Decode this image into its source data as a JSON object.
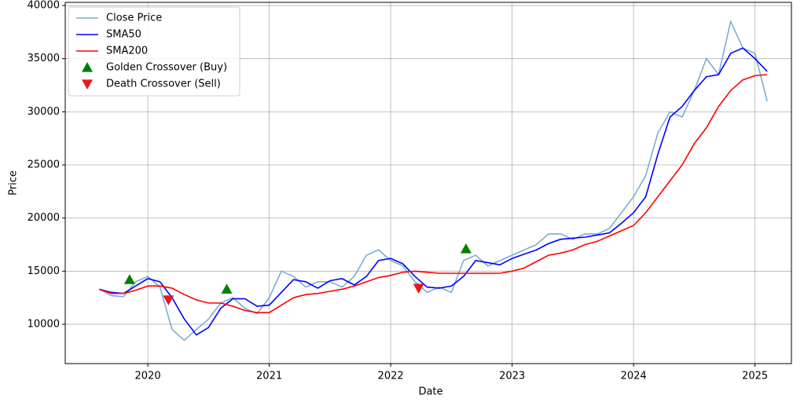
{
  "chart_data": {
    "type": "line",
    "xlabel": "Date",
    "ylabel": "Price",
    "x": [
      2019.6,
      2019.7,
      2019.8,
      2019.9,
      2020.0,
      2020.1,
      2020.2,
      2020.3,
      2020.4,
      2020.5,
      2020.6,
      2020.7,
      2020.8,
      2020.9,
      2021.0,
      2021.1,
      2021.2,
      2021.3,
      2021.4,
      2021.5,
      2021.6,
      2021.7,
      2021.8,
      2021.9,
      2022.0,
      2022.1,
      2022.2,
      2022.3,
      2022.4,
      2022.5,
      2022.6,
      2022.7,
      2022.8,
      2022.9,
      2023.0,
      2023.1,
      2023.2,
      2023.3,
      2023.4,
      2023.5,
      2023.6,
      2023.7,
      2023.8,
      2023.9,
      2024.0,
      2024.1,
      2024.2,
      2024.3,
      2024.4,
      2024.5,
      2024.6,
      2024.7,
      2024.8,
      2024.9,
      2025.0,
      2025.1
    ],
    "series": [
      {
        "name": "Close Price",
        "color": "#79add2",
        "values": [
          13300,
          12700,
          12600,
          14000,
          14500,
          13500,
          9500,
          8500,
          9500,
          10500,
          12000,
          12500,
          11500,
          11000,
          12500,
          15000,
          14500,
          13500,
          14000,
          14000,
          13500,
          14500,
          16500,
          17000,
          16000,
          15500,
          14000,
          13000,
          13500,
          13000,
          16000,
          16500,
          15500,
          16000,
          16500,
          17000,
          17500,
          18500,
          18500,
          18000,
          18500,
          18500,
          19000,
          20500,
          22000,
          24000,
          28000,
          30000,
          29500,
          32000,
          35000,
          33500,
          38500,
          36000,
          35500,
          31000
        ]
      },
      {
        "name": "SMA50",
        "color": "#0000ff",
        "values": [
          13300,
          13000,
          12900,
          13600,
          14300,
          14000,
          12500,
          10500,
          9000,
          9700,
          11500,
          12400,
          12400,
          11700,
          11800,
          13000,
          14200,
          14000,
          13400,
          14100,
          14300,
          13700,
          14500,
          16000,
          16200,
          15700,
          14500,
          13500,
          13400,
          13600,
          14500,
          16000,
          15800,
          15600,
          16200,
          16600,
          17000,
          17600,
          18000,
          18100,
          18200,
          18400,
          18600,
          19500,
          20500,
          22000,
          26000,
          29500,
          30500,
          32000,
          33300,
          33500,
          35500,
          36000,
          35000,
          33800
        ]
      },
      {
        "name": "SMA200",
        "color": "#ff0000",
        "values": [
          13300,
          12900,
          12900,
          13200,
          13600,
          13600,
          13400,
          12800,
          12300,
          12000,
          12000,
          11700,
          11300,
          11100,
          11100,
          11800,
          12500,
          12800,
          12900,
          13100,
          13300,
          13600,
          14000,
          14400,
          14600,
          14900,
          15000,
          14900,
          14800,
          14800,
          14800,
          14800,
          14800,
          14800,
          15000,
          15300,
          15900,
          16500,
          16700,
          17000,
          17500,
          17800,
          18300,
          18800,
          19300,
          20500,
          22000,
          23500,
          25000,
          27000,
          28500,
          30500,
          32000,
          33000,
          33400,
          33500
        ]
      },
      {
        "name": "Golden Crossover (Buy)",
        "type": "scatter",
        "marker": "up",
        "color": "#008000",
        "x": [
          2019.85,
          2020.65,
          2022.62
        ],
        "values": [
          14200,
          13300,
          17100
        ]
      },
      {
        "name": "Death Crossover (Sell)",
        "type": "scatter",
        "marker": "down",
        "color": "#e8191e",
        "x": [
          2020.17,
          2022.23
        ],
        "values": [
          12300,
          13400
        ]
      }
    ],
    "xlim": [
      2019.32,
      2025.3
    ],
    "xticks": [
      2020,
      2021,
      2022,
      2023,
      2024,
      2025
    ],
    "ylim": [
      6300,
      40300
    ],
    "yticks": [
      10000,
      15000,
      20000,
      25000,
      30000,
      35000,
      40000
    ],
    "grid": true,
    "legend": "upper left"
  }
}
